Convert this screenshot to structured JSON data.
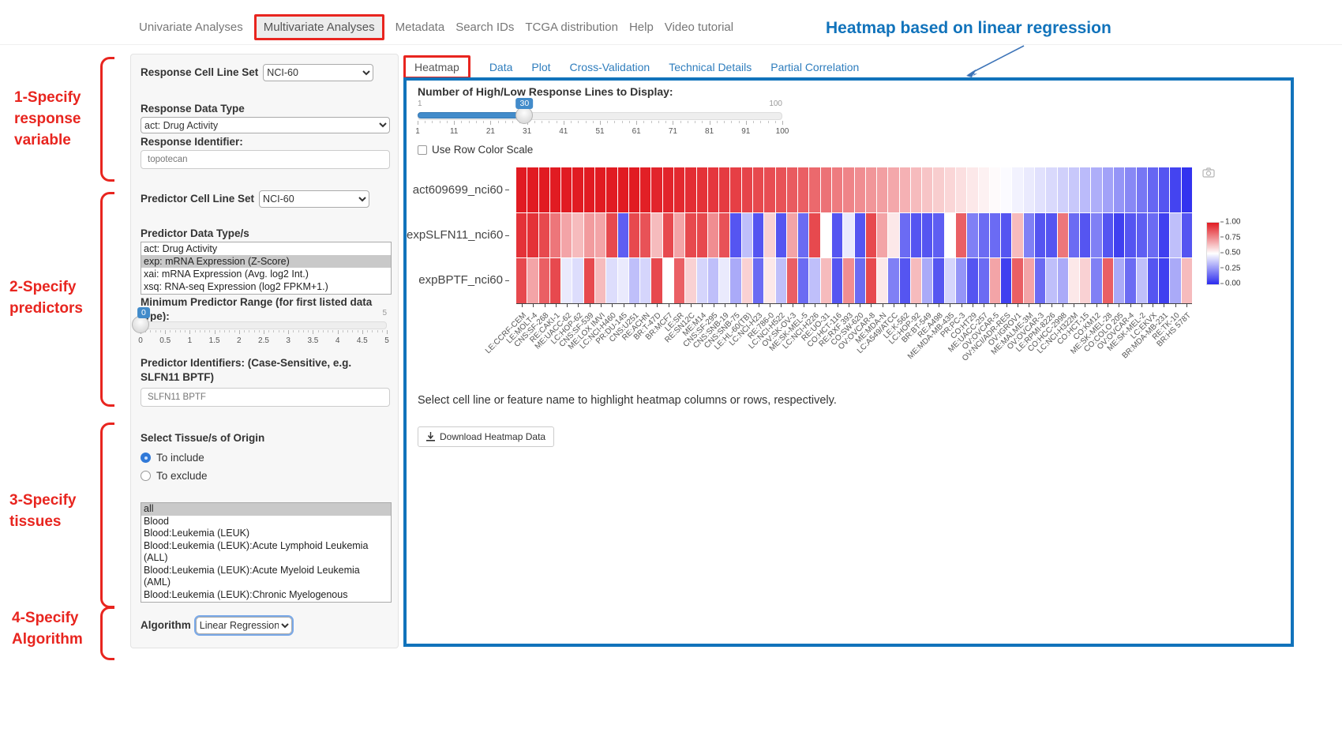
{
  "nav": {
    "items": [
      {
        "label": "Univariate Analyses",
        "active": false
      },
      {
        "label": "Multivariate Analyses",
        "active": true
      },
      {
        "label": "Metadata",
        "active": false
      },
      {
        "label": "Search IDs",
        "active": false
      },
      {
        "label": "TCGA distribution",
        "active": false
      },
      {
        "label": "Help",
        "active": false
      },
      {
        "label": "Video tutorial",
        "active": false
      }
    ]
  },
  "annotation": {
    "title": "Heatmap based on linear regression",
    "accent_color": "#1173bb",
    "step_color": "#e8251f",
    "steps": [
      {
        "lines": [
          "1-Specify",
          "response",
          "variable"
        ]
      },
      {
        "lines": [
          "2-Specify",
          "predictors"
        ]
      },
      {
        "lines": [
          "3-Specify",
          "tissues"
        ]
      },
      {
        "lines": [
          "4-Specify",
          "Algorithm"
        ]
      }
    ]
  },
  "sidebar": {
    "response_cell_line_set": {
      "label": "Response Cell Line Set",
      "value": "NCI-60"
    },
    "response_data_type": {
      "label": "Response Data Type",
      "value": "act: Drug Activity"
    },
    "response_identifier": {
      "label": "Response Identifier:",
      "value": "topotecan"
    },
    "predictor_cell_line_set": {
      "label": "Predictor Cell Line Set",
      "value": "NCI-60"
    },
    "predictor_data_types": {
      "label": "Predictor Data Type/s",
      "options": [
        "act: Drug Activity",
        "exp: mRNA Expression (Z-Score)",
        "xai: mRNA Expression (Avg. log2 Int.)",
        "xsq: RNA-seq Expression (log2 FPKM+1.)"
      ],
      "selected_index": 1
    },
    "min_predictor_range": {
      "label": "Minimum Predictor Range (for first listed data type):",
      "value": "0",
      "min": "0",
      "max": "5",
      "ticks": [
        "0",
        "0.5",
        "1",
        "1.5",
        "2",
        "2.5",
        "3",
        "3.5",
        "4",
        "4.5",
        "5"
      ]
    },
    "predictor_identifiers": {
      "label": "Predictor Identifiers: (Case-Sensitive, e.g. SLFN11 BPTF)",
      "value": "SLFN11 BPTF"
    },
    "tissues": {
      "label": "Select Tissue/s of Origin",
      "include_label": "To include",
      "exclude_label": "To exclude",
      "selected_mode": "include",
      "options": [
        "all",
        "Blood",
        "Blood:Leukemia (LEUK)",
        "Blood:Leukemia (LEUK):Acute Lymphoid Leukemia (ALL)",
        "Blood:Leukemia (LEUK):Acute Myeloid Leukemia (AML)",
        "Blood:Leukemia (LEUK):Chronic Myelogenous Leukemia (CML)"
      ],
      "selected_index": 0
    },
    "algorithm": {
      "label": "Algorithm",
      "value": "Linear Regression"
    }
  },
  "panel": {
    "tabs": [
      {
        "label": "Heatmap",
        "active": true
      },
      {
        "label": "Data",
        "active": false
      },
      {
        "label": "Plot",
        "active": false
      },
      {
        "label": "Cross-Validation",
        "active": false
      },
      {
        "label": "Technical Details",
        "active": false
      },
      {
        "label": "Partial Correlation",
        "active": false
      }
    ],
    "lines_slider": {
      "label": "Number of High/Low Response Lines to Display:",
      "value": "30",
      "min": "1",
      "max": "100",
      "ticks": [
        "1",
        "11",
        "21",
        "31",
        "41",
        "51",
        "61",
        "71",
        "81",
        "91",
        "100"
      ]
    },
    "row_color_scale_label": "Use Row Color Scale",
    "note": "Select cell line or feature name to highlight heatmap columns or rows, respectively.",
    "download_button": "Download Heatmap Data",
    "border_color": "#1173bb"
  },
  "chart_data": {
    "type": "heatmap",
    "title": "",
    "rows": [
      "act609699_nci60",
      "expSLFN11_nci60",
      "expBPTF_nci60"
    ],
    "columns": [
      "LE:CCRF-CEM",
      "LE:MOLT-4",
      "CNS:SF-268",
      "RE:CAKI-1",
      "ME:UACC-62",
      "LC:HOP-62",
      "CNS:SF-539",
      "ME:LOX IMVI",
      "LC:NCI-H460",
      "PR:DU-145",
      "CNS:U251",
      "RE:ACHN",
      "BR:T-47D",
      "BR:MCF7",
      "LE:SR",
      "RE:SN12C",
      "ME:M14",
      "CNS:SF-295",
      "CNS:SNB-19",
      "CNS:SNB-75",
      "LE:HL-60(TB)",
      "LC:NCI-H23",
      "RE:786-0",
      "LC:NCI-H522",
      "OV:SK-OV-3",
      "ME:SK-MEL-5",
      "LC:NCI-H226",
      "RE:UO-31",
      "CO:HCT-116",
      "RE:RXF 393",
      "CO:SW-620",
      "OV:OVCAR-8",
      "ME:MDA-N",
      "LC:A549/ATCC",
      "LE:K-562",
      "LC:HOP-92",
      "BR:BT-549",
      "RE:A498",
      "ME:MDA-MB-435",
      "PR:PC-3",
      "CO:HT29",
      "ME:UACC-257",
      "OV:OVCAR-5",
      "OV:NCI/ADR-RES",
      "OV:IGROV1",
      "ME:MALME-3M",
      "OV:OVCAR-3",
      "LE:RPMI-8226",
      "CO:HCC-2998",
      "LC:NCI-H322M",
      "CO:HCT-15",
      "CO:KM12",
      "ME:SK-MEL-28",
      "CO:COLO 205",
      "OV:OVCAR-4",
      "ME:SK-MEL-2",
      "LC:EKVX",
      "BR:MDA-MB-231",
      "RE:TK-10",
      "BR:HS 578T"
    ],
    "values": [
      [
        1.0,
        1.0,
        1.0,
        1.0,
        1.0,
        1.0,
        1.0,
        1.0,
        1.0,
        1.0,
        1.0,
        0.99,
        0.98,
        0.98,
        0.97,
        0.96,
        0.95,
        0.94,
        0.93,
        0.92,
        0.91,
        0.9,
        0.89,
        0.88,
        0.86,
        0.85,
        0.83,
        0.81,
        0.79,
        0.77,
        0.75,
        0.73,
        0.71,
        0.69,
        0.67,
        0.65,
        0.63,
        0.61,
        0.59,
        0.57,
        0.55,
        0.53,
        0.51,
        0.49,
        0.47,
        0.45,
        0.43,
        0.41,
        0.39,
        0.37,
        0.34,
        0.31,
        0.28,
        0.25,
        0.22,
        0.18,
        0.14,
        0.1,
        0.06,
        0.02
      ],
      [
        0.95,
        0.95,
        0.9,
        0.8,
        0.7,
        0.65,
        0.72,
        0.7,
        0.9,
        0.12,
        0.9,
        0.88,
        0.65,
        0.9,
        0.7,
        0.9,
        0.9,
        0.75,
        0.88,
        0.1,
        0.35,
        0.1,
        0.6,
        0.1,
        0.7,
        0.15,
        0.9,
        0.5,
        0.1,
        0.45,
        0.1,
        0.9,
        0.7,
        0.55,
        0.15,
        0.1,
        0.1,
        0.12,
        0.5,
        0.85,
        0.2,
        0.15,
        0.15,
        0.1,
        0.65,
        0.2,
        0.1,
        0.1,
        0.8,
        0.15,
        0.1,
        0.2,
        0.1,
        0.05,
        0.1,
        0.12,
        0.15,
        0.05,
        0.35,
        0.1
      ],
      [
        0.9,
        0.7,
        0.85,
        0.9,
        0.45,
        0.42,
        0.9,
        0.65,
        0.42,
        0.45,
        0.35,
        0.4,
        0.9,
        0.5,
        0.85,
        0.6,
        0.4,
        0.35,
        0.45,
        0.3,
        0.6,
        0.15,
        0.55,
        0.35,
        0.85,
        0.15,
        0.35,
        0.65,
        0.1,
        0.75,
        0.15,
        0.9,
        0.55,
        0.2,
        0.1,
        0.65,
        0.3,
        0.1,
        0.4,
        0.25,
        0.1,
        0.15,
        0.7,
        0.05,
        0.85,
        0.7,
        0.15,
        0.35,
        0.3,
        0.55,
        0.6,
        0.2,
        0.85,
        0.3,
        0.15,
        0.35,
        0.1,
        0.05,
        0.3,
        0.65
      ]
    ],
    "colorscale": {
      "high": "#e11b22",
      "mid": "#ffffff",
      "low": "#2b2bee"
    },
    "colorbar_ticks": [
      "1.00",
      "0.75",
      "0.50",
      "0.25",
      "0.00"
    ],
    "legend_position": "right",
    "xlabel": "",
    "ylabel": ""
  }
}
